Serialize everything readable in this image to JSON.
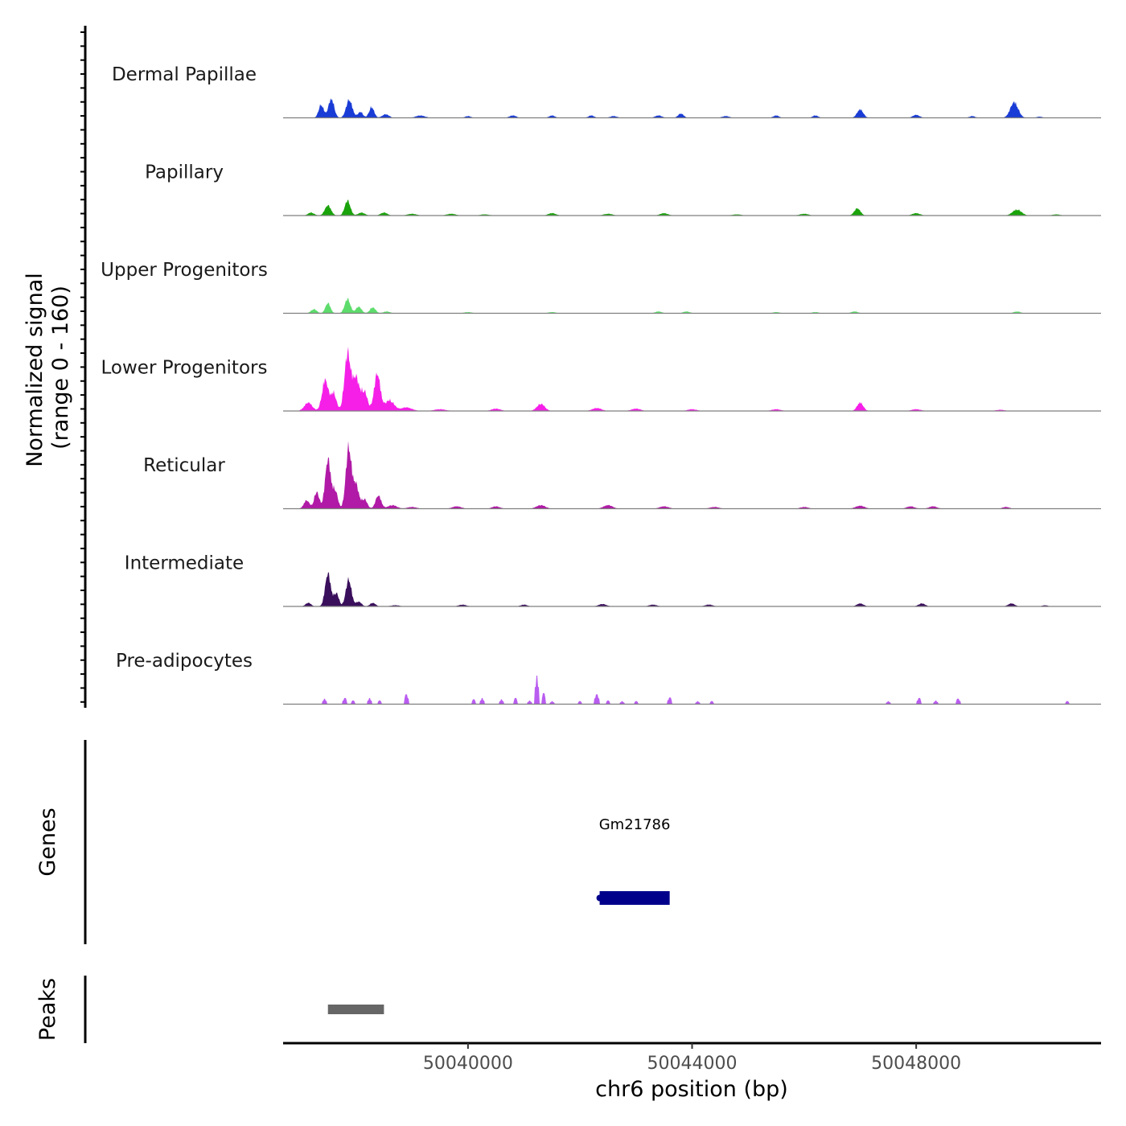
{
  "chart_data": {
    "type": "area",
    "title": "",
    "ylabel_line1": "Normalized signal",
    "ylabel_line2": "(range 0 - 160)",
    "y_range": [
      0,
      160
    ],
    "xlabel": "chr6 position (bp)",
    "xlim": [
      50036700,
      50051300
    ],
    "x_ticks": [
      50040000,
      50044000,
      50048000
    ],
    "x_tick_labels": [
      "50040000",
      "50044000",
      "50048000"
    ],
    "baseline_color": "#7f7f7f",
    "tracks": [
      {
        "name": "Dermal Papillae",
        "color": "#1a3cd6",
        "peaks": [
          {
            "x": 50037380,
            "h": 22,
            "w": 45
          },
          {
            "x": 50037560,
            "h": 32,
            "w": 50
          },
          {
            "x": 50037880,
            "h": 30,
            "w": 55
          },
          {
            "x": 50038080,
            "h": 10,
            "w": 45
          },
          {
            "x": 50038280,
            "h": 18,
            "w": 45
          },
          {
            "x": 50038530,
            "h": 6,
            "w": 60
          },
          {
            "x": 50039150,
            "h": 4,
            "w": 80
          },
          {
            "x": 50040000,
            "h": 3,
            "w": 50
          },
          {
            "x": 50040800,
            "h": 4,
            "w": 60
          },
          {
            "x": 50041500,
            "h": 4,
            "w": 50
          },
          {
            "x": 50042200,
            "h": 4,
            "w": 50
          },
          {
            "x": 50042600,
            "h": 3,
            "w": 60
          },
          {
            "x": 50043400,
            "h": 4,
            "w": 60
          },
          {
            "x": 50043800,
            "h": 7,
            "w": 50
          },
          {
            "x": 50044600,
            "h": 3,
            "w": 60
          },
          {
            "x": 50045500,
            "h": 4,
            "w": 50
          },
          {
            "x": 50046200,
            "h": 4,
            "w": 50
          },
          {
            "x": 50047000,
            "h": 14,
            "w": 55
          },
          {
            "x": 50048000,
            "h": 5,
            "w": 60
          },
          {
            "x": 50049000,
            "h": 3,
            "w": 50
          },
          {
            "x": 50049750,
            "h": 26,
            "w": 70
          },
          {
            "x": 50050200,
            "h": 2,
            "w": 50
          }
        ]
      },
      {
        "name": "Papillary",
        "color": "#1aa30b",
        "peaks": [
          {
            "x": 50037200,
            "h": 5,
            "w": 55
          },
          {
            "x": 50037500,
            "h": 17,
            "w": 55
          },
          {
            "x": 50037850,
            "h": 25,
            "w": 50
          },
          {
            "x": 50038100,
            "h": 5,
            "w": 60
          },
          {
            "x": 50038500,
            "h": 5,
            "w": 60
          },
          {
            "x": 50039000,
            "h": 3,
            "w": 80
          },
          {
            "x": 50039700,
            "h": 3,
            "w": 80
          },
          {
            "x": 50040300,
            "h": 2,
            "w": 80
          },
          {
            "x": 50041500,
            "h": 4,
            "w": 70
          },
          {
            "x": 50042500,
            "h": 3,
            "w": 80
          },
          {
            "x": 50043500,
            "h": 4,
            "w": 70
          },
          {
            "x": 50044800,
            "h": 2,
            "w": 80
          },
          {
            "x": 50046000,
            "h": 3,
            "w": 80
          },
          {
            "x": 50046950,
            "h": 12,
            "w": 55
          },
          {
            "x": 50048000,
            "h": 4,
            "w": 70
          },
          {
            "x": 50049800,
            "h": 10,
            "w": 80
          },
          {
            "x": 50050500,
            "h": 2,
            "w": 70
          }
        ]
      },
      {
        "name": "Upper Progenitors",
        "color": "#5ddc6c",
        "peaks": [
          {
            "x": 50037250,
            "h": 7,
            "w": 50
          },
          {
            "x": 50037500,
            "h": 17,
            "w": 45
          },
          {
            "x": 50037850,
            "h": 24,
            "w": 50
          },
          {
            "x": 50038050,
            "h": 11,
            "w": 50
          },
          {
            "x": 50038300,
            "h": 10,
            "w": 50
          },
          {
            "x": 50038550,
            "h": 3,
            "w": 60
          },
          {
            "x": 50040000,
            "h": 2,
            "w": 70
          },
          {
            "x": 50041500,
            "h": 2,
            "w": 70
          },
          {
            "x": 50043400,
            "h": 3,
            "w": 60
          },
          {
            "x": 50043900,
            "h": 3,
            "w": 60
          },
          {
            "x": 50045500,
            "h": 2,
            "w": 60
          },
          {
            "x": 50046200,
            "h": 2,
            "w": 60
          },
          {
            "x": 50046900,
            "h": 3,
            "w": 60
          },
          {
            "x": 50049800,
            "h": 3,
            "w": 60
          }
        ]
      },
      {
        "name": "Lower Progenitors",
        "color": "#f51fe8",
        "peaks": [
          {
            "x": 50037150,
            "h": 14,
            "w": 70
          },
          {
            "x": 50037450,
            "h": 52,
            "w": 55
          },
          {
            "x": 50037600,
            "h": 30,
            "w": 50
          },
          {
            "x": 50037850,
            "h": 95,
            "w": 55
          },
          {
            "x": 50038000,
            "h": 55,
            "w": 60
          },
          {
            "x": 50038150,
            "h": 32,
            "w": 55
          },
          {
            "x": 50038380,
            "h": 62,
            "w": 55
          },
          {
            "x": 50038600,
            "h": 18,
            "w": 80
          },
          {
            "x": 50038900,
            "h": 6,
            "w": 100
          },
          {
            "x": 50039500,
            "h": 3,
            "w": 100
          },
          {
            "x": 50040500,
            "h": 4,
            "w": 80
          },
          {
            "x": 50041300,
            "h": 12,
            "w": 70
          },
          {
            "x": 50042300,
            "h": 5,
            "w": 80
          },
          {
            "x": 50043000,
            "h": 4,
            "w": 80
          },
          {
            "x": 50044000,
            "h": 3,
            "w": 80
          },
          {
            "x": 50045500,
            "h": 3,
            "w": 80
          },
          {
            "x": 50047000,
            "h": 14,
            "w": 55
          },
          {
            "x": 50048000,
            "h": 3,
            "w": 80
          },
          {
            "x": 50049500,
            "h": 2,
            "w": 80
          }
        ]
      },
      {
        "name": "Reticular",
        "color": "#b01aa6",
        "peaks": [
          {
            "x": 50037120,
            "h": 14,
            "w": 50
          },
          {
            "x": 50037300,
            "h": 28,
            "w": 45
          },
          {
            "x": 50037500,
            "h": 82,
            "w": 50
          },
          {
            "x": 50037630,
            "h": 30,
            "w": 45
          },
          {
            "x": 50037870,
            "h": 102,
            "w": 50
          },
          {
            "x": 50038000,
            "h": 40,
            "w": 50
          },
          {
            "x": 50038150,
            "h": 16,
            "w": 50
          },
          {
            "x": 50038400,
            "h": 22,
            "w": 50
          },
          {
            "x": 50038650,
            "h": 6,
            "w": 80
          },
          {
            "x": 50039000,
            "h": 3,
            "w": 80
          },
          {
            "x": 50039800,
            "h": 4,
            "w": 80
          },
          {
            "x": 50040500,
            "h": 4,
            "w": 70
          },
          {
            "x": 50041300,
            "h": 6,
            "w": 80
          },
          {
            "x": 50042500,
            "h": 6,
            "w": 80
          },
          {
            "x": 50043500,
            "h": 4,
            "w": 80
          },
          {
            "x": 50044400,
            "h": 3,
            "w": 80
          },
          {
            "x": 50046000,
            "h": 3,
            "w": 70
          },
          {
            "x": 50047000,
            "h": 5,
            "w": 80
          },
          {
            "x": 50047900,
            "h": 4,
            "w": 70
          },
          {
            "x": 50048300,
            "h": 4,
            "w": 70
          },
          {
            "x": 50049600,
            "h": 3,
            "w": 60
          }
        ]
      },
      {
        "name": "Intermediate",
        "color": "#3a0f5c",
        "peaks": [
          {
            "x": 50037150,
            "h": 6,
            "w": 50
          },
          {
            "x": 50037500,
            "h": 55,
            "w": 50
          },
          {
            "x": 50037650,
            "h": 22,
            "w": 45
          },
          {
            "x": 50037870,
            "h": 45,
            "w": 50
          },
          {
            "x": 50038050,
            "h": 8,
            "w": 50
          },
          {
            "x": 50038300,
            "h": 6,
            "w": 50
          },
          {
            "x": 50038700,
            "h": 2,
            "w": 80
          },
          {
            "x": 50039900,
            "h": 3,
            "w": 70
          },
          {
            "x": 50041000,
            "h": 3,
            "w": 60
          },
          {
            "x": 50042400,
            "h": 4,
            "w": 70
          },
          {
            "x": 50043300,
            "h": 3,
            "w": 70
          },
          {
            "x": 50044300,
            "h": 3,
            "w": 70
          },
          {
            "x": 50047000,
            "h": 5,
            "w": 60
          },
          {
            "x": 50048100,
            "h": 5,
            "w": 60
          },
          {
            "x": 50049700,
            "h": 5,
            "w": 60
          },
          {
            "x": 50050300,
            "h": 2,
            "w": 50
          }
        ]
      },
      {
        "name": "Pre-adipocytes",
        "color": "#b95cf0",
        "step": true,
        "peaks": [
          {
            "x": 50037440,
            "h": 9,
            "w": 40
          },
          {
            "x": 50037800,
            "h": 10,
            "w": 45
          },
          {
            "x": 50037950,
            "h": 6,
            "w": 40
          },
          {
            "x": 50038240,
            "h": 10,
            "w": 40
          },
          {
            "x": 50038420,
            "h": 6,
            "w": 40
          },
          {
            "x": 50038900,
            "h": 16,
            "w": 45
          },
          {
            "x": 50040100,
            "h": 8,
            "w": 40
          },
          {
            "x": 50040250,
            "h": 10,
            "w": 40
          },
          {
            "x": 50040600,
            "h": 8,
            "w": 40
          },
          {
            "x": 50040850,
            "h": 10,
            "w": 40
          },
          {
            "x": 50041100,
            "h": 6,
            "w": 45
          },
          {
            "x": 50041230,
            "h": 47,
            "w": 38
          },
          {
            "x": 50041350,
            "h": 18,
            "w": 40
          },
          {
            "x": 50041500,
            "h": 5,
            "w": 40
          },
          {
            "x": 50042000,
            "h": 5,
            "w": 40
          },
          {
            "x": 50042300,
            "h": 16,
            "w": 45
          },
          {
            "x": 50042500,
            "h": 6,
            "w": 40
          },
          {
            "x": 50042750,
            "h": 5,
            "w": 40
          },
          {
            "x": 50043000,
            "h": 5,
            "w": 40
          },
          {
            "x": 50043600,
            "h": 11,
            "w": 45
          },
          {
            "x": 50044100,
            "h": 5,
            "w": 40
          },
          {
            "x": 50044350,
            "h": 5,
            "w": 40
          },
          {
            "x": 50047500,
            "h": 5,
            "w": 40
          },
          {
            "x": 50048050,
            "h": 10,
            "w": 45
          },
          {
            "x": 50048350,
            "h": 6,
            "w": 40
          },
          {
            "x": 50048750,
            "h": 9,
            "w": 45
          },
          {
            "x": 50050700,
            "h": 5,
            "w": 40
          }
        ]
      }
    ],
    "genes_label": "Genes",
    "genes": [
      {
        "name": "Gm21786",
        "start": 50042350,
        "end": 50043600,
        "color": "#00008b"
      }
    ],
    "peaks_label": "Peaks",
    "peak_regions": [
      {
        "start": 50037500,
        "end": 50038500,
        "color": "#666666"
      }
    ]
  }
}
